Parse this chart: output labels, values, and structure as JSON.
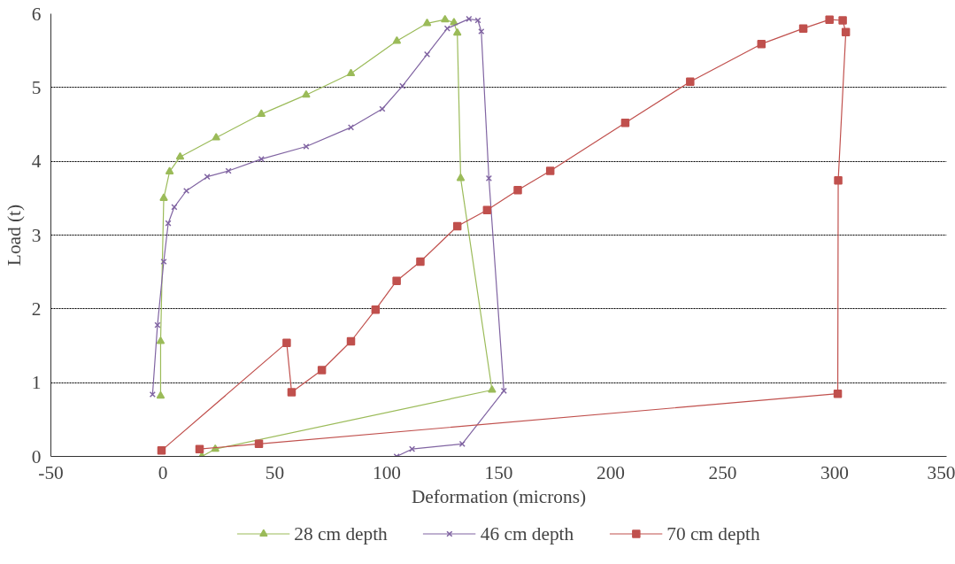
{
  "chart_data": {
    "type": "line",
    "xlabel": "Deformation (microns)",
    "ylabel": "Load (t)",
    "xlim": [
      -50,
      350
    ],
    "xticks": [
      -50,
      0,
      50,
      100,
      150,
      200,
      250,
      300,
      350
    ],
    "ylim": [
      0,
      6
    ],
    "yticks": [
      0,
      1,
      2,
      3,
      4,
      5,
      6
    ],
    "grid": "y",
    "legend": "bottom",
    "line_style": "solid",
    "series": [
      {
        "name": "28 cm depth",
        "color": "#9bbb59",
        "marker": "triangle",
        "x": [
          -1,
          -1,
          0.4,
          3,
          7.7,
          23.8,
          44,
          64,
          84,
          104.5,
          118,
          126,
          130,
          131.5,
          133,
          147,
          23.4,
          17.4
        ],
        "values": [
          0.82,
          1.56,
          3.5,
          3.86,
          4.06,
          4.32,
          4.64,
          4.9,
          5.19,
          5.63,
          5.87,
          5.92,
          5.88,
          5.74,
          3.77,
          0.9,
          0.1,
          0.0
        ]
      },
      {
        "name": "46 cm depth",
        "color": "#8064a2",
        "marker": "cross",
        "x": [
          -4.6,
          -2.4,
          0.4,
          2.4,
          5.1,
          10.5,
          19.8,
          29.3,
          44,
          64,
          84,
          98,
          107,
          118,
          127,
          136.7,
          140.7,
          142.2,
          145.6,
          152.3,
          133.7,
          111.3,
          104.4
        ],
        "values": [
          0.84,
          1.78,
          2.64,
          3.16,
          3.38,
          3.6,
          3.79,
          3.87,
          4.03,
          4.2,
          4.46,
          4.71,
          5.02,
          5.45,
          5.8,
          5.93,
          5.91,
          5.76,
          3.77,
          0.89,
          0.17,
          0.1,
          0.0
        ]
      },
      {
        "name": "70 cm depth",
        "color": "#c0504d",
        "marker": "square",
        "x": [
          -0.6,
          55.3,
          57.5,
          71,
          84,
          95,
          104.4,
          115,
          131.5,
          144.8,
          158.5,
          173,
          206.5,
          235.5,
          267.3,
          286,
          297.7,
          303.6,
          305,
          301.6,
          301.4,
          42.9,
          16.4
        ],
        "values": [
          0.08,
          1.54,
          0.87,
          1.17,
          1.56,
          1.99,
          2.38,
          2.64,
          3.12,
          3.34,
          3.61,
          3.87,
          4.52,
          5.08,
          5.59,
          5.8,
          5.92,
          5.91,
          5.75,
          3.74,
          0.85,
          0.17,
          0.1
        ]
      }
    ]
  }
}
